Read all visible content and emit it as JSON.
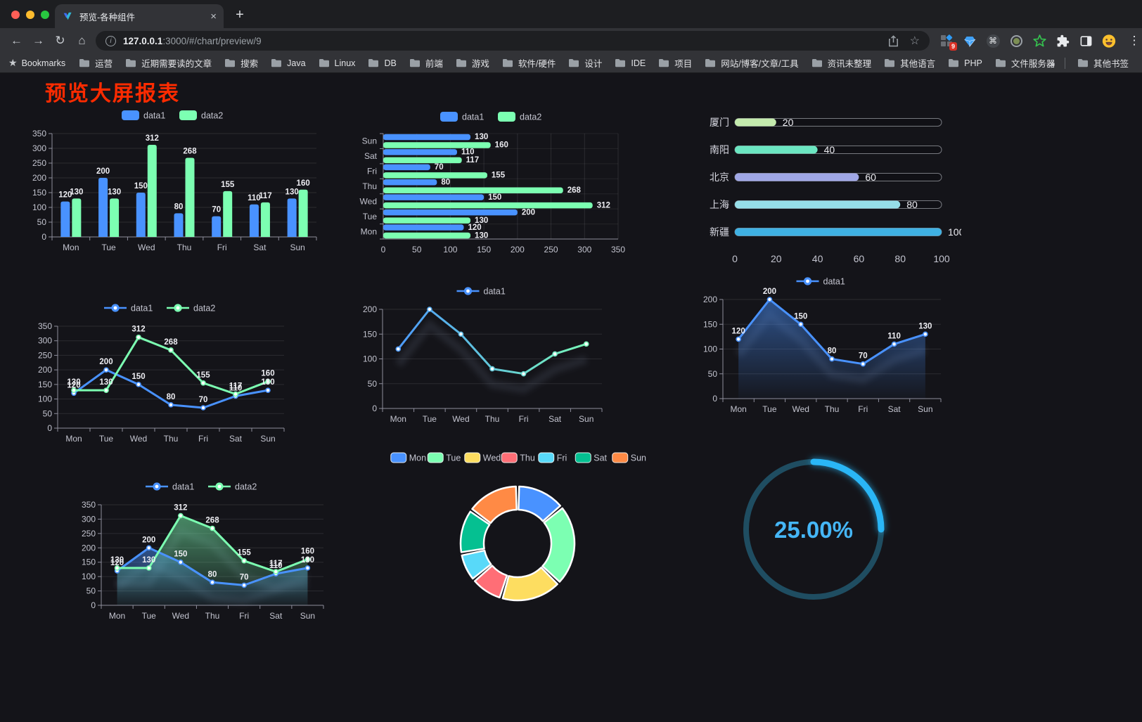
{
  "browser": {
    "tab_title": "预览-各种组件",
    "url_host": "127.0.0.1",
    "url_rest": ":3000/#/chart/preview/9",
    "bookmarks_label": "Bookmarks",
    "bookmarks": [
      "运营",
      "近期需要读的文章",
      "搜索",
      "Java",
      "Linux",
      "DB",
      "前端",
      "游戏",
      "软件/硬件",
      "设计",
      "IDE",
      "项目",
      "网站/博客/文章/工具",
      "资讯未整理",
      "其他语言",
      "PHP",
      "文件服务器"
    ],
    "bookmarks_overflow": "»",
    "other_bookmarks": "其他书签",
    "extension_badge": "9"
  },
  "icons": {
    "plus": "+",
    "close_tab": "×",
    "back": "←",
    "forward": "→",
    "reload": "↻",
    "home": "⌂",
    "info": "i",
    "star_outline": "☆",
    "star_filled": "★",
    "menu_dots": "⋮",
    "cmd": "⌘"
  },
  "page": {
    "title": "预览大屏报表",
    "title_color": "#fe2b00"
  },
  "colors": {
    "data1": "#4992ff",
    "data2": "#7cffb2",
    "gauge_progress": "#29b6f6",
    "gauge_track": "#1f4d61",
    "pie_palette": [
      "#4992ff",
      "#7cffb2",
      "#fddd60",
      "#ff6e76",
      "#58d9f9",
      "#05c091",
      "#ff8a45"
    ]
  },
  "chart_data": [
    {
      "type": "bar",
      "categories": [
        "Mon",
        "Tue",
        "Wed",
        "Thu",
        "Fri",
        "Sat",
        "Sun"
      ],
      "ylim": [
        0,
        350
      ],
      "ytick": 50,
      "series": [
        {
          "name": "data1",
          "color": "#4992ff",
          "values": [
            120,
            200,
            150,
            80,
            70,
            110,
            130
          ]
        },
        {
          "name": "data2",
          "color": "#7cffb2",
          "values": [
            130,
            130,
            312,
            268,
            155,
            117,
            160
          ]
        }
      ]
    },
    {
      "type": "hbar",
      "categories": [
        "Mon",
        "Tue",
        "Wed",
        "Thu",
        "Fri",
        "Sat",
        "Sun"
      ],
      "xlim": [
        0,
        350
      ],
      "xtick": 50,
      "series": [
        {
          "name": "data1",
          "color": "#4992ff",
          "values": [
            120,
            200,
            150,
            80,
            70,
            110,
            130
          ]
        },
        {
          "name": "data2",
          "color": "#7cffb2",
          "values": [
            130,
            130,
            312,
            268,
            155,
            117,
            160
          ]
        }
      ]
    },
    {
      "type": "progress",
      "xlim": [
        0,
        100
      ],
      "xticks": [
        0,
        20,
        40,
        60,
        80,
        100
      ],
      "items": [
        {
          "label": "厦门",
          "value": 20,
          "color": "#c4ebad"
        },
        {
          "label": "南阳",
          "value": 40,
          "color": "#6be6c1"
        },
        {
          "label": "北京",
          "value": 60,
          "color": "#a0a7e6"
        },
        {
          "label": "上海",
          "value": 80,
          "color": "#96dee8"
        },
        {
          "label": "新疆",
          "value": 100,
          "color": "#3fb1e3"
        }
      ]
    },
    {
      "type": "line",
      "categories": [
        "Mon",
        "Tue",
        "Wed",
        "Thu",
        "Fri",
        "Sat",
        "Sun"
      ],
      "ylim": [
        0,
        350
      ],
      "ytick": 50,
      "labels": true,
      "shadow": false,
      "series": [
        {
          "name": "data1",
          "color": "#4992ff",
          "values": [
            120,
            200,
            150,
            80,
            70,
            110,
            130
          ]
        },
        {
          "name": "data2",
          "color": "#7cffb2",
          "values": [
            130,
            130,
            312,
            268,
            155,
            117,
            160
          ]
        }
      ]
    },
    {
      "type": "line",
      "categories": [
        "Mon",
        "Tue",
        "Wed",
        "Thu",
        "Fri",
        "Sat",
        "Sun"
      ],
      "ylim": [
        0,
        200
      ],
      "ytick": 50,
      "labels": false,
      "shadow": true,
      "series": [
        {
          "name": "data1",
          "color_gradient": [
            "#4992ff",
            "#7cffb2"
          ],
          "values": [
            120,
            200,
            150,
            80,
            70,
            110,
            130
          ]
        }
      ]
    },
    {
      "type": "line",
      "categories": [
        "Mon",
        "Tue",
        "Wed",
        "Thu",
        "Fri",
        "Sat",
        "Sun"
      ],
      "ylim": [
        0,
        200
      ],
      "ytick": 50,
      "labels": true,
      "shadow": true,
      "series": [
        {
          "name": "data1",
          "color": "#4992ff",
          "area": true,
          "values": [
            120,
            200,
            150,
            80,
            70,
            110,
            130
          ]
        }
      ]
    },
    {
      "type": "line",
      "categories": [
        "Mon",
        "Tue",
        "Wed",
        "Thu",
        "Fri",
        "Sat",
        "Sun"
      ],
      "ylim": [
        0,
        350
      ],
      "ytick": 50,
      "labels": true,
      "shadow": true,
      "series": [
        {
          "name": "data1",
          "color": "#4992ff",
          "area": true,
          "values": [
            120,
            200,
            150,
            80,
            70,
            110,
            130
          ]
        },
        {
          "name": "data2",
          "color": "#7cffb2",
          "area": true,
          "values": [
            130,
            130,
            312,
            268,
            155,
            117,
            160
          ]
        }
      ]
    },
    {
      "type": "donut",
      "categories": [
        "Mon",
        "Tue",
        "Wed",
        "Thu",
        "Fri",
        "Sat",
        "Sun"
      ],
      "values": [
        120,
        200,
        150,
        80,
        70,
        110,
        130
      ],
      "colors": [
        "#4992ff",
        "#7cffb2",
        "#fddd60",
        "#ff6e76",
        "#58d9f9",
        "#05c091",
        "#ff8a45"
      ]
    },
    {
      "type": "gauge",
      "value": 25,
      "label": "25.00%",
      "color": "#29b6f6",
      "track": "#1f4d61"
    }
  ]
}
